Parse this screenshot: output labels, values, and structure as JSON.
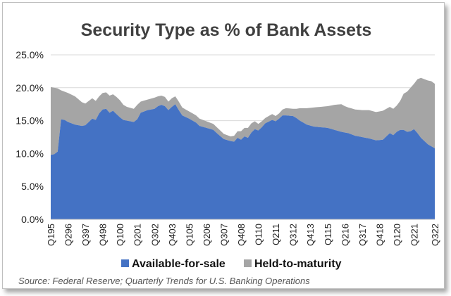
{
  "chart_data": {
    "type": "area",
    "stacked": true,
    "title": "Security Type as % of Bank Assets",
    "source": "Source: Federal Reserve; Quarterly Trends for U.S. Banking Operations",
    "xlabel": "",
    "ylabel": "",
    "ylim": [
      0,
      25
    ],
    "yticks": [
      "0.0%",
      "5.0%",
      "10.0%",
      "15.0%",
      "20.0%",
      "25.0%"
    ],
    "xtick_labels": [
      "Q195",
      "Q296",
      "Q397",
      "Q498",
      "Q100",
      "Q201",
      "Q302",
      "Q403",
      "Q105",
      "Q206",
      "Q307",
      "Q408",
      "Q110",
      "Q211",
      "Q312",
      "Q413",
      "Q115",
      "Q216",
      "Q317",
      "Q418",
      "Q120",
      "Q221",
      "Q322"
    ],
    "xtick_index": [
      0,
      5,
      10,
      15,
      20,
      25,
      30,
      35,
      40,
      45,
      50,
      55,
      60,
      65,
      70,
      75,
      80,
      85,
      90,
      95,
      100,
      105,
      111
    ],
    "n_quarters": 112,
    "x_start": "Q1 1995",
    "x_end": "Q3 2022",
    "legend_position": "bottom",
    "grid": "horizontal",
    "colors": {
      "available_for_sale": "#4472C4",
      "held_to_maturity": "#A5A5A5",
      "plot_background": "#FFFFFF",
      "grid": "#D9D9D9"
    },
    "series": [
      {
        "name": "Available-for-sale",
        "keypoints": [
          [
            0,
            9.8
          ],
          [
            1,
            9.9
          ],
          [
            2,
            10.3
          ],
          [
            3,
            15.2
          ],
          [
            4,
            15.1
          ],
          [
            5,
            14.8
          ],
          [
            7,
            14.4
          ],
          [
            9,
            14.2
          ],
          [
            10,
            14.3
          ],
          [
            11,
            14.8
          ],
          [
            12,
            15.3
          ],
          [
            13,
            15.1
          ],
          [
            14,
            16.1
          ],
          [
            15,
            16.7
          ],
          [
            16,
            16.8
          ],
          [
            17,
            16.2
          ],
          [
            18,
            16.5
          ],
          [
            19,
            16.0
          ],
          [
            20,
            15.5
          ],
          [
            21,
            15.1
          ],
          [
            22,
            15.0
          ],
          [
            24,
            14.8
          ],
          [
            25,
            15.2
          ],
          [
            26,
            16.2
          ],
          [
            28,
            16.6
          ],
          [
            30,
            16.8
          ],
          [
            31,
            17.2
          ],
          [
            32,
            17.4
          ],
          [
            33,
            17.2
          ],
          [
            34,
            16.6
          ],
          [
            35,
            17.1
          ],
          [
            36,
            17.5
          ],
          [
            37,
            16.6
          ],
          [
            38,
            15.8
          ],
          [
            40,
            15.3
          ],
          [
            42,
            14.7
          ],
          [
            43,
            14.2
          ],
          [
            45,
            13.9
          ],
          [
            47,
            13.6
          ],
          [
            48,
            13.1
          ],
          [
            50,
            12.2
          ],
          [
            52,
            11.9
          ],
          [
            53,
            11.8
          ],
          [
            54,
            12.4
          ],
          [
            55,
            12.1
          ],
          [
            56,
            12.6
          ],
          [
            57,
            12.4
          ],
          [
            58,
            13.2
          ],
          [
            59,
            13.7
          ],
          [
            60,
            13.5
          ],
          [
            61,
            14.0
          ],
          [
            62,
            14.6
          ],
          [
            64,
            15.1
          ],
          [
            65,
            14.9
          ],
          [
            66,
            15.3
          ],
          [
            67,
            15.8
          ],
          [
            68,
            15.8
          ],
          [
            70,
            15.7
          ],
          [
            71,
            15.4
          ],
          [
            72,
            15.0
          ],
          [
            74,
            14.4
          ],
          [
            76,
            14.1
          ],
          [
            78,
            14.0
          ],
          [
            80,
            13.9
          ],
          [
            82,
            13.6
          ],
          [
            84,
            13.3
          ],
          [
            86,
            13.1
          ],
          [
            88,
            12.7
          ],
          [
            90,
            12.5
          ],
          [
            92,
            12.3
          ],
          [
            94,
            12.0
          ],
          [
            96,
            12.1
          ],
          [
            97,
            12.6
          ],
          [
            98,
            13.1
          ],
          [
            99,
            12.8
          ],
          [
            100,
            13.3
          ],
          [
            101,
            13.6
          ],
          [
            102,
            13.6
          ],
          [
            103,
            13.3
          ],
          [
            104,
            13.4
          ],
          [
            105,
            13.7
          ],
          [
            106,
            13.1
          ],
          [
            107,
            12.4
          ],
          [
            109,
            11.4
          ],
          [
            111,
            10.8
          ]
        ]
      },
      {
        "name": "Held-to-maturity",
        "total_keypoints": [
          [
            0,
            20.1
          ],
          [
            1,
            20.0
          ],
          [
            2,
            19.9
          ],
          [
            3,
            19.6
          ],
          [
            5,
            19.2
          ],
          [
            7,
            18.7
          ],
          [
            9,
            17.8
          ],
          [
            10,
            17.6
          ],
          [
            11,
            18.0
          ],
          [
            12,
            18.4
          ],
          [
            13,
            18.0
          ],
          [
            14,
            18.7
          ],
          [
            15,
            19.2
          ],
          [
            16,
            19.3
          ],
          [
            17,
            18.8
          ],
          [
            18,
            19.0
          ],
          [
            19,
            18.6
          ],
          [
            20,
            18.1
          ],
          [
            21,
            17.4
          ],
          [
            22,
            17.1
          ],
          [
            24,
            16.8
          ],
          [
            25,
            17.4
          ],
          [
            26,
            17.9
          ],
          [
            28,
            18.2
          ],
          [
            30,
            18.5
          ],
          [
            31,
            18.7
          ],
          [
            32,
            18.8
          ],
          [
            33,
            18.6
          ],
          [
            34,
            17.9
          ],
          [
            35,
            18.4
          ],
          [
            36,
            18.7
          ],
          [
            37,
            17.9
          ],
          [
            38,
            17.0
          ],
          [
            40,
            16.4
          ],
          [
            42,
            15.8
          ],
          [
            43,
            15.3
          ],
          [
            45,
            14.9
          ],
          [
            47,
            14.5
          ],
          [
            48,
            14.0
          ],
          [
            50,
            13.0
          ],
          [
            52,
            12.6
          ],
          [
            53,
            12.7
          ],
          [
            54,
            13.4
          ],
          [
            55,
            13.4
          ],
          [
            56,
            13.9
          ],
          [
            57,
            13.9
          ],
          [
            58,
            14.6
          ],
          [
            59,
            14.9
          ],
          [
            60,
            14.5
          ],
          [
            61,
            14.9
          ],
          [
            62,
            15.4
          ],
          [
            64,
            16.0
          ],
          [
            65,
            15.7
          ],
          [
            66,
            16.1
          ],
          [
            67,
            16.7
          ],
          [
            68,
            16.9
          ],
          [
            70,
            16.8
          ],
          [
            71,
            16.8
          ],
          [
            72,
            16.9
          ],
          [
            74,
            16.9
          ],
          [
            76,
            17.0
          ],
          [
            78,
            17.1
          ],
          [
            80,
            17.2
          ],
          [
            82,
            17.4
          ],
          [
            84,
            17.5
          ],
          [
            85,
            17.2
          ],
          [
            86,
            17.0
          ],
          [
            88,
            16.7
          ],
          [
            90,
            16.6
          ],
          [
            92,
            16.6
          ],
          [
            94,
            16.3
          ],
          [
            96,
            16.5
          ],
          [
            97,
            16.8
          ],
          [
            98,
            17.1
          ],
          [
            99,
            16.8
          ],
          [
            100,
            17.3
          ],
          [
            101,
            18.0
          ],
          [
            102,
            19.1
          ],
          [
            103,
            19.4
          ],
          [
            104,
            20.0
          ],
          [
            105,
            20.6
          ],
          [
            106,
            21.3
          ],
          [
            107,
            21.5
          ],
          [
            108,
            21.3
          ],
          [
            109,
            21.1
          ],
          [
            110,
            21.0
          ],
          [
            111,
            20.6
          ]
        ]
      }
    ]
  }
}
